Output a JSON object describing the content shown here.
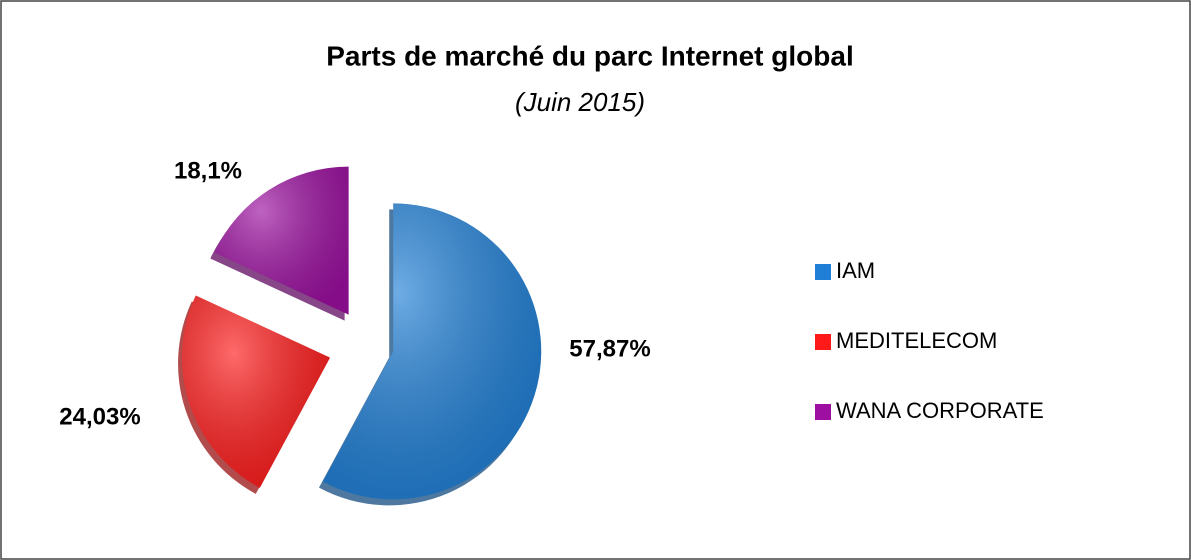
{
  "chart_data": {
    "type": "pie",
    "title": "Parts de marché du parc Internet global",
    "subtitle": "(Juin 2015)",
    "categories": [
      "IAM",
      "MEDITELECOM",
      "WANA CORPORATE"
    ],
    "values": [
      57.87,
      24.03,
      18.1
    ],
    "value_labels": [
      "57,87%",
      "24,03%",
      "18,1%"
    ],
    "colors": [
      "#1f7fd6",
      "#ff1a1a",
      "#9c0fa0"
    ],
    "legend": "right"
  }
}
